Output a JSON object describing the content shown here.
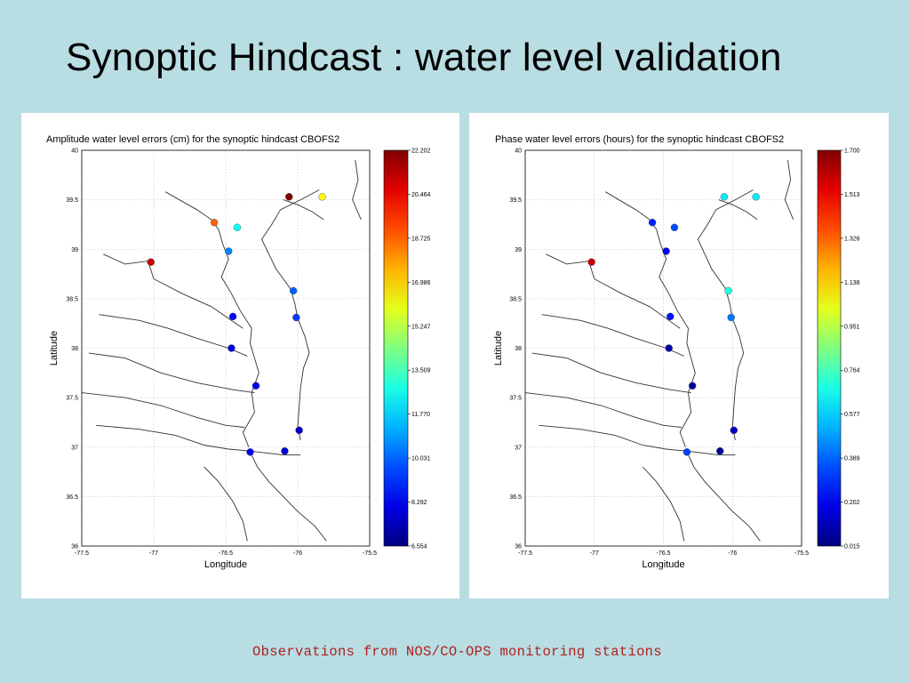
{
  "slide": {
    "title": "Synoptic Hindcast : water level validation",
    "caption": "Observations from NOS/CO-OPS monitoring stations"
  },
  "colors": {
    "background": "#b8dde3",
    "caption": "#b02020"
  },
  "panels": [
    {
      "title": "Amplitude water level errors (cm) for the synoptic hindcast CBOFS2",
      "xlabel": "Longitude",
      "ylabel": "Latitude",
      "x_ticks": [
        "-77.5",
        "-77",
        "-76.5",
        "-76",
        "-75.5"
      ],
      "y_ticks": [
        "40",
        "39.5",
        "39",
        "38.5",
        "38",
        "37.5",
        "37",
        "36.5",
        "36"
      ],
      "colorbar": {
        "min": 6.554,
        "max": 22.202,
        "ticks": [
          "22.202",
          "20.464",
          "18.725",
          "16.986",
          "15.247",
          "13.509",
          "11.770",
          "10.031",
          "8.292",
          "6.554"
        ]
      },
      "stations": [
        {
          "lon": -76.06,
          "lat": 39.53,
          "value": 22.2
        },
        {
          "lon": -75.83,
          "lat": 39.53,
          "value": 16.4
        },
        {
          "lon": -76.58,
          "lat": 39.27,
          "value": 18.7
        },
        {
          "lon": -76.42,
          "lat": 39.22,
          "value": 12.6
        },
        {
          "lon": -76.48,
          "lat": 38.98,
          "value": 10.5
        },
        {
          "lon": -77.02,
          "lat": 38.87,
          "value": 21.0
        },
        {
          "lon": -76.03,
          "lat": 38.58,
          "value": 10.0
        },
        {
          "lon": -76.45,
          "lat": 38.32,
          "value": 8.6
        },
        {
          "lon": -76.01,
          "lat": 38.31,
          "value": 9.4
        },
        {
          "lon": -76.46,
          "lat": 38.0,
          "value": 8.0
        },
        {
          "lon": -76.29,
          "lat": 37.62,
          "value": 8.3
        },
        {
          "lon": -75.99,
          "lat": 37.17,
          "value": 7.6
        },
        {
          "lon": -76.33,
          "lat": 36.95,
          "value": 8.4
        },
        {
          "lon": -76.09,
          "lat": 36.96,
          "value": 7.8
        }
      ]
    },
    {
      "title": "Phase water level errors (hours) for the synoptic hindcast CBOFS2",
      "xlabel": "Longitude",
      "ylabel": "Latitude",
      "x_ticks": [
        "-77.5",
        "-77",
        "-76.5",
        "-76",
        "-75.5"
      ],
      "y_ticks": [
        "40",
        "39.5",
        "39",
        "38.5",
        "38",
        "37.5",
        "37",
        "36.5",
        "36"
      ],
      "colorbar": {
        "min": 0.015,
        "max": 1.7,
        "ticks": [
          "1.700",
          "1.513",
          "1.326",
          "1.138",
          "0.951",
          "0.764",
          "0.577",
          "0.389",
          "0.202",
          "0.015"
        ]
      },
      "stations": [
        {
          "lon": -76.06,
          "lat": 39.53,
          "value": 0.62
        },
        {
          "lon": -75.83,
          "lat": 39.53,
          "value": 0.62
        },
        {
          "lon": -76.58,
          "lat": 39.27,
          "value": 0.28
        },
        {
          "lon": -76.42,
          "lat": 39.22,
          "value": 0.35
        },
        {
          "lon": -76.48,
          "lat": 38.98,
          "value": 0.22
        },
        {
          "lon": -77.02,
          "lat": 38.87,
          "value": 1.58
        },
        {
          "lon": -76.03,
          "lat": 38.58,
          "value": 0.7
        },
        {
          "lon": -76.45,
          "lat": 38.32,
          "value": 0.25
        },
        {
          "lon": -76.01,
          "lat": 38.31,
          "value": 0.42
        },
        {
          "lon": -76.46,
          "lat": 38.0,
          "value": 0.08
        },
        {
          "lon": -76.29,
          "lat": 37.62,
          "value": 0.07
        },
        {
          "lon": -75.99,
          "lat": 37.17,
          "value": 0.12
        },
        {
          "lon": -76.33,
          "lat": 36.95,
          "value": 0.33
        },
        {
          "lon": -76.09,
          "lat": 36.96,
          "value": 0.06
        }
      ]
    }
  ]
}
